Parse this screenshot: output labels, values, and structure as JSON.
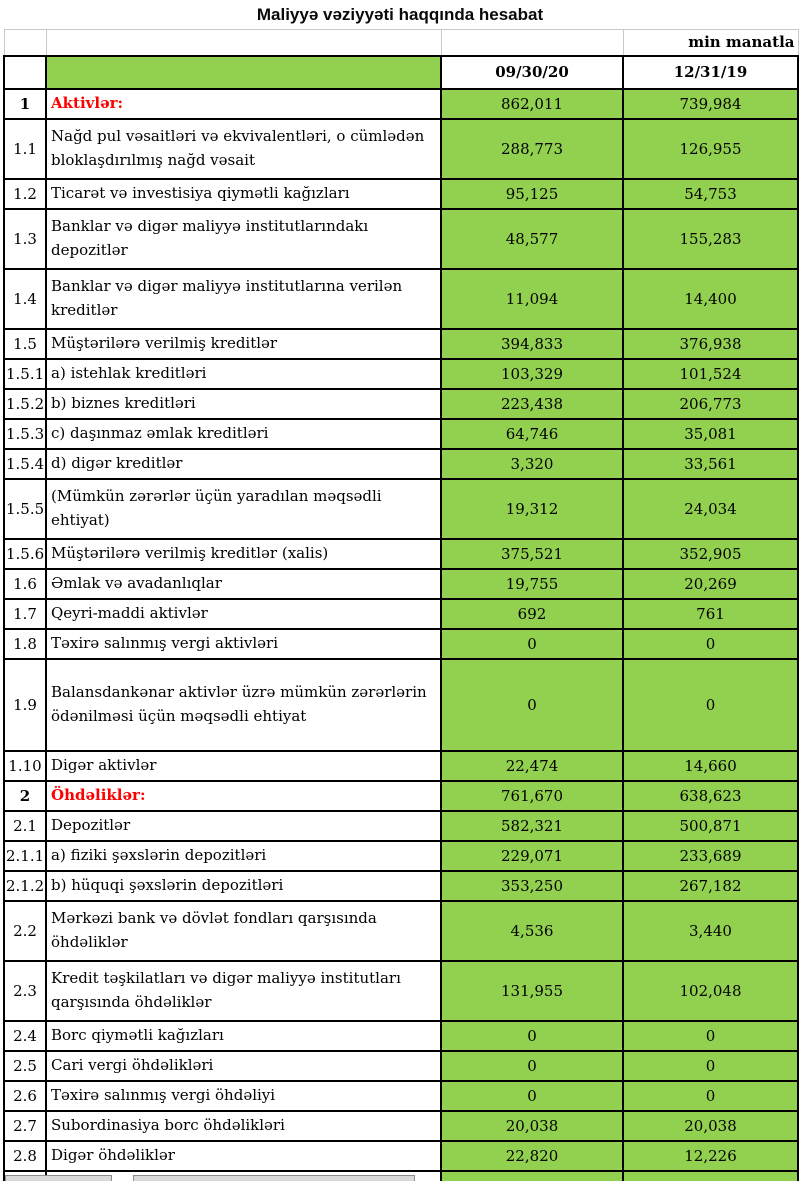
{
  "title": "Maliyyə vəziyyəti haqqında hesabat",
  "unit_note": "min manatla",
  "columns": {
    "period1": "09/30/20",
    "period2": "12/31/19"
  },
  "colors": {
    "cell_green": "#92D050",
    "section_red": "#FF0000",
    "grid_black": "#000000",
    "grid_light_gray": "#C9C9C9",
    "flag_green": "#3C7D21"
  },
  "rows": [
    {
      "no": "1",
      "label": "Aktivlər:",
      "v1": "862,011",
      "v2": "739,984",
      "section": true,
      "lines": 1,
      "flag": false
    },
    {
      "no": "1.1",
      "label": "Nağd pul vəsaitləri və  ekvivalentləri, o cümlədən bloklaşdırılmış nağd vəsait",
      "v1": "288,773",
      "v2": "126,955",
      "section": false,
      "lines": 2,
      "flag": false
    },
    {
      "no": "1.2",
      "label": "Ticarət və investisiya qiymətli kağızları",
      "v1": "95,125",
      "v2": "54,753",
      "section": false,
      "lines": 1,
      "flag": false
    },
    {
      "no": "1.3",
      "label": "Banklar və digər maliyyə institutlarındakı depozitlər",
      "v1": "48,577",
      "v2": "155,283",
      "section": false,
      "lines": 2,
      "flag": false
    },
    {
      "no": "1.4",
      "label": "Banklar və digər maliyyə institutlarına verilən kreditlər",
      "v1": "11,094",
      "v2": "14,400",
      "section": false,
      "lines": 2,
      "flag": false
    },
    {
      "no": "1.5",
      "label": "Müştərilərə verilmiş kreditlər",
      "v1": "394,833",
      "v2": "376,938",
      "section": false,
      "lines": 1,
      "flag": false
    },
    {
      "no": "1.5.1",
      "label": "a) istehlak kreditləri",
      "v1": "103,329",
      "v2": "101,524",
      "section": false,
      "lines": 1,
      "flag": false
    },
    {
      "no": "1.5.2",
      "label": "b) biznes kreditləri",
      "v1": "223,438",
      "v2": "206,773",
      "section": false,
      "lines": 1,
      "flag": false
    },
    {
      "no": "1.5.3",
      "label": "c) daşınmaz əmlak kreditləri",
      "v1": "64,746",
      "v2": "35,081",
      "section": false,
      "lines": 1,
      "flag": false
    },
    {
      "no": "1.5.4",
      "label": "d) digər kreditlər",
      "v1": "3,320",
      "v2": "33,561",
      "section": false,
      "lines": 1,
      "flag": false
    },
    {
      "no": "1.5.5",
      "label": "(Mümkün zərərlər üçün yaradılan məqsədli ehtiyat)",
      "v1": "19,312",
      "v2": "24,034",
      "section": false,
      "lines": 2,
      "flag": false
    },
    {
      "no": "1.5.6",
      "label": "Müştərilərə verilmiş kreditlər (xalis)",
      "v1": "375,521",
      "v2": "352,905",
      "section": false,
      "lines": 1,
      "flag": false
    },
    {
      "no": "1.6",
      "label": "Əmlak və avadanlıqlar",
      "v1": "19,755",
      "v2": "20,269",
      "section": false,
      "lines": 1,
      "flag": false
    },
    {
      "no": "1.7",
      "label": "Qeyri-maddi aktivlər",
      "v1": "692",
      "v2": "761",
      "section": false,
      "lines": 1,
      "flag": false
    },
    {
      "no": "1.8",
      "label": "Təxirə salınmış vergi aktivləri",
      "v1": "0",
      "v2": "0",
      "section": false,
      "lines": 1,
      "flag": false
    },
    {
      "no": "1.9",
      "label": "Balansdankənar aktivlər üzrə mümkün zərərlərin ödənilməsi üçün məqsədli ehtiyat",
      "v1": "0",
      "v2": "0",
      "section": false,
      "lines": 3,
      "flag": false
    },
    {
      "no": "1.10",
      "label": "Digər aktivlər",
      "v1": "22,474",
      "v2": "14,660",
      "section": false,
      "lines": 1,
      "flag": true
    },
    {
      "no": "2",
      "label": "Öhdəliklər:",
      "v1": "761,670",
      "v2": "638,623",
      "section": true,
      "lines": 1,
      "flag": false
    },
    {
      "no": "2.1",
      "label": "Depozitlər",
      "v1": "582,321",
      "v2": "500,871",
      "section": false,
      "lines": 1,
      "flag": false
    },
    {
      "no": "2.1.1",
      "label": "a) fiziki şəxslərin depozitləri",
      "v1": "229,071",
      "v2": "233,689",
      "section": false,
      "lines": 1,
      "flag": false
    },
    {
      "no": "2.1.2",
      "label": "b) hüquqi şəxslərin depozitləri",
      "v1": "353,250",
      "v2": "267,182",
      "section": false,
      "lines": 1,
      "flag": false
    },
    {
      "no": "2.2",
      "label": "Mərkəzi bank və dövlət fondları qarşısında öhdəliklər",
      "v1": "4,536",
      "v2": "3,440",
      "section": false,
      "lines": 2,
      "flag": false
    },
    {
      "no": "2.3",
      "label": "Kredit təşkilatları və digər maliyyə institutları qarşısında öhdəliklər",
      "v1": "131,955",
      "v2": "102,048",
      "section": false,
      "lines": 2,
      "flag": false
    },
    {
      "no": "2.4",
      "label": "Borc qiymətli kağızları",
      "v1": "0",
      "v2": "0",
      "section": false,
      "lines": 1,
      "flag": false
    },
    {
      "no": "2.5",
      "label": "Cari vergi öhdəlikləri",
      "v1": "0",
      "v2": "0",
      "section": false,
      "lines": 1,
      "flag": false
    },
    {
      "no": "2.6",
      "label": "Təxirə salınmış vergi öhdəliyi",
      "v1": "0",
      "v2": "0",
      "section": false,
      "lines": 1,
      "flag": false
    },
    {
      "no": "2.7",
      "label": "Subordinasiya borc öhdəlikləri",
      "v1": "20,038",
      "v2": "20,038",
      "section": false,
      "lines": 1,
      "flag": false
    },
    {
      "no": "2.8",
      "label": "Digər öhdəliklər",
      "v1": "22,820",
      "v2": "12,226",
      "section": false,
      "lines": 1,
      "flag": false
    }
  ]
}
